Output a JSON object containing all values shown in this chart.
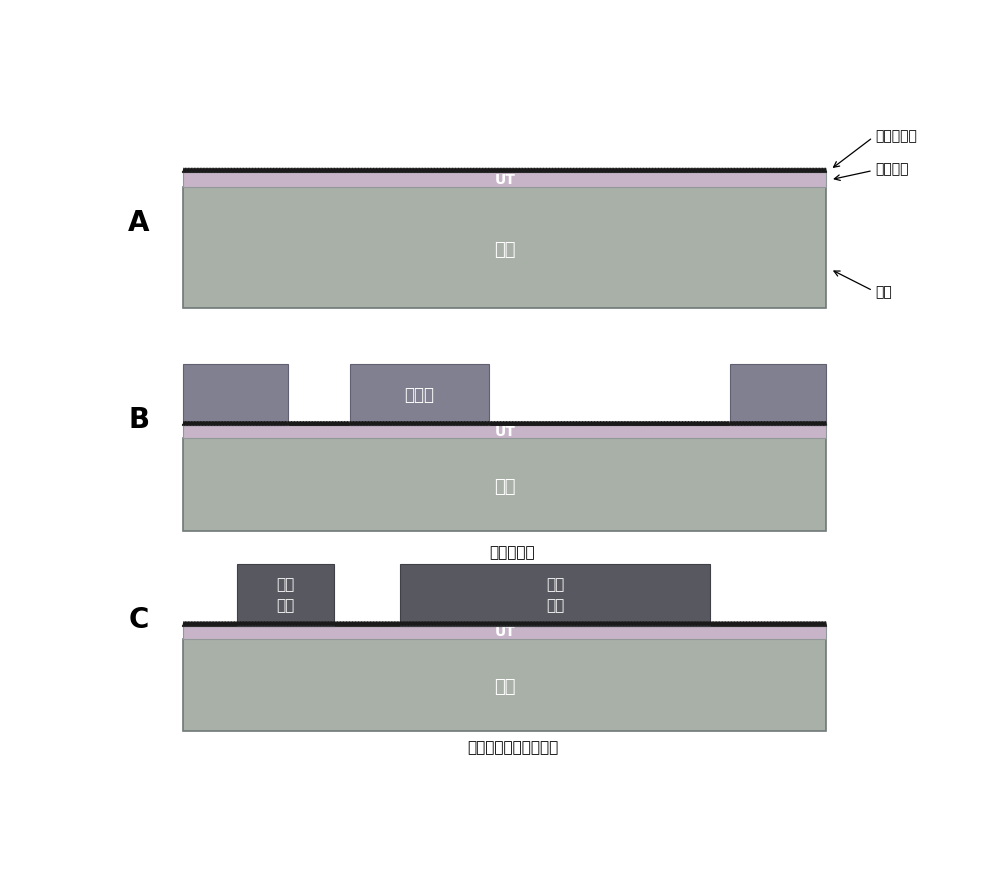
{
  "fig_width": 10.0,
  "fig_height": 8.82,
  "bg_color": "#ffffff",
  "carrier_color": "#a8b0a8",
  "carrier_border_color": "#707878",
  "ut_layer_color": "#c8b4c8",
  "ut_line_color": "#303030",
  "roughen_color": "#1a1a1a",
  "resist_color": "#808090",
  "circuit_color": "#585860",
  "panel_label_fontsize": 20,
  "ut_fontsize": 10,
  "carrier_fontsize": 13,
  "annotation_fontsize": 10,
  "caption_fontsize": 11,
  "captions": [
    "",
    "曝光、显影",
    "电路镀敏、去除抗蚀剂"
  ],
  "labels_A": [
    "粗化处理层",
    "极薄铜层",
    "载体"
  ],
  "labels_B": [
    "抗蚀剂"
  ],
  "labels_C0": "电路\n镀敏",
  "labels_C1": "电路\n镀敏",
  "carrier_label": "载体"
}
